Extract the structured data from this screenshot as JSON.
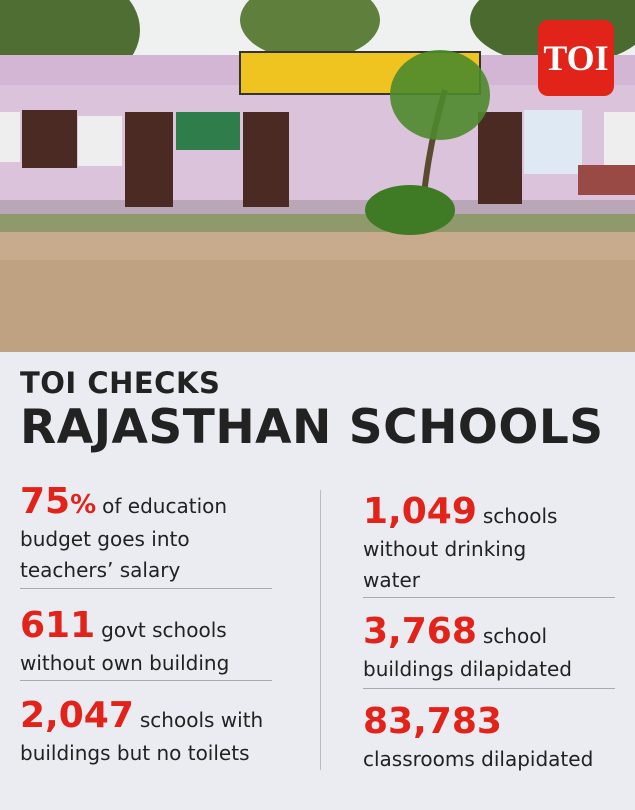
{
  "logo": "TOI",
  "heading": {
    "kicker": "TOI CHECKS",
    "title": "RAJASTHAN SCHOOLS"
  },
  "left_stats": [
    {
      "figure": "75",
      "suffix": "%",
      "after": "of education",
      "lines": [
        "budget goes into",
        "teachers’ salary"
      ]
    },
    {
      "figure": "611",
      "after": "govt schools",
      "lines": [
        "without own building"
      ]
    },
    {
      "figure": "2,047",
      "after": "schools with",
      "lines": [
        "buildings but no toilets"
      ]
    }
  ],
  "right_stats": [
    {
      "figure": "1,049",
      "after": "schools",
      "lines": [
        "without drinking",
        "water"
      ]
    },
    {
      "figure": "3,768",
      "after": "school",
      "lines": [
        "buildings dilapidated"
      ]
    },
    {
      "figure": "83,783",
      "lines": [
        "classrooms dilapidated"
      ]
    }
  ]
}
